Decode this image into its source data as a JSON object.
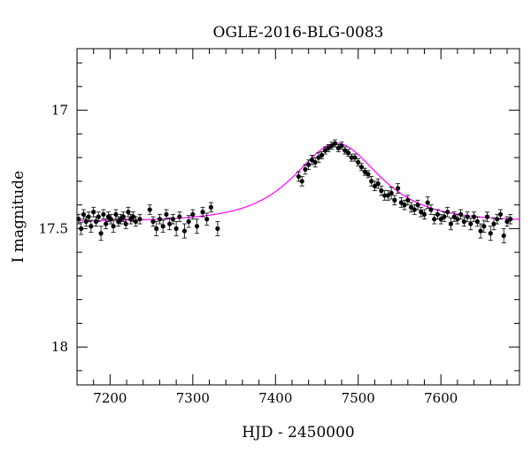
{
  "chart_data": {
    "type": "scatter",
    "title": "OGLE-2016-BLG-0083",
    "xlabel": "HJD - 2450000",
    "ylabel": "I magnitude",
    "xlim": [
      7160,
      7695
    ],
    "ylim": [
      18.16,
      16.74
    ],
    "y_inverted": true,
    "grid": false,
    "legend": "none",
    "x_ticks": [
      7200,
      7300,
      7400,
      7500,
      7600
    ],
    "y_ticks": [
      17,
      17.5,
      18
    ],
    "x_tick_labels": [
      "7200",
      "7300",
      "7400",
      "7500",
      "7600"
    ],
    "y_tick_labels": [
      "17",
      "17.5",
      "18"
    ],
    "model": {
      "color": "#ff00ff",
      "baseline": 17.47,
      "peak_mag": 17.14,
      "t0": 7474,
      "tE": 62,
      "x_range": [
        7160,
        7695
      ]
    },
    "series": [
      {
        "color": "#000000",
        "x": [
          7162,
          7165,
          7168,
          7171,
          7174,
          7177,
          7180,
          7183,
          7186,
          7189,
          7192,
          7195,
          7198,
          7201,
          7204,
          7207,
          7210,
          7213,
          7216,
          7219,
          7222,
          7225,
          7228,
          7231,
          7236,
          7248,
          7252,
          7256,
          7260,
          7264,
          7268,
          7272,
          7276,
          7280,
          7284,
          7290,
          7295,
          7300,
          7305,
          7312,
          7317,
          7322,
          7330,
          7428,
          7432,
          7436,
          7440,
          7444,
          7448,
          7452,
          7456,
          7460,
          7464,
          7468,
          7472,
          7476,
          7480,
          7484,
          7488,
          7492,
          7496,
          7500,
          7504,
          7508,
          7512,
          7516,
          7520,
          7524,
          7528,
          7532,
          7536,
          7540,
          7544,
          7548,
          7552,
          7556,
          7560,
          7564,
          7568,
          7572,
          7576,
          7580,
          7584,
          7588,
          7592,
          7596,
          7600,
          7604,
          7608,
          7612,
          7616,
          7620,
          7624,
          7628,
          7632,
          7636,
          7640,
          7644,
          7648,
          7652,
          7656,
          7660,
          7664,
          7668,
          7672,
          7676,
          7680,
          7684
        ],
        "y": [
          17.46,
          17.5,
          17.44,
          17.47,
          17.45,
          17.49,
          17.43,
          17.47,
          17.45,
          17.52,
          17.44,
          17.48,
          17.45,
          17.46,
          17.49,
          17.44,
          17.47,
          17.46,
          17.45,
          17.48,
          17.43,
          17.46,
          17.45,
          17.47,
          17.46,
          17.42,
          17.47,
          17.5,
          17.46,
          17.49,
          17.44,
          17.48,
          17.46,
          17.5,
          17.45,
          17.51,
          17.47,
          17.44,
          17.49,
          17.43,
          17.46,
          17.41,
          17.5,
          17.28,
          17.3,
          17.25,
          17.23,
          17.21,
          17.22,
          17.2,
          17.19,
          17.17,
          17.16,
          17.15,
          17.14,
          17.16,
          17.15,
          17.17,
          17.18,
          17.2,
          17.2,
          17.22,
          17.24,
          17.26,
          17.27,
          17.3,
          17.32,
          17.31,
          17.34,
          17.36,
          17.36,
          17.35,
          17.38,
          17.33,
          17.39,
          17.4,
          17.38,
          17.41,
          17.42,
          17.4,
          17.43,
          17.44,
          17.39,
          17.42,
          17.46,
          17.44,
          17.46,
          17.45,
          17.43,
          17.48,
          17.45,
          17.46,
          17.44,
          17.47,
          17.45,
          17.48,
          17.45,
          17.47,
          17.51,
          17.49,
          17.45,
          17.52,
          17.48,
          17.46,
          17.44,
          17.53,
          17.47,
          17.46
        ],
        "errors": [
          0.02,
          0.025,
          0.02,
          0.02,
          0.02,
          0.025,
          0.02,
          0.02,
          0.02,
          0.03,
          0.02,
          0.02,
          0.02,
          0.02,
          0.025,
          0.02,
          0.02,
          0.02,
          0.02,
          0.02,
          0.02,
          0.02,
          0.02,
          0.02,
          0.02,
          0.02,
          0.02,
          0.03,
          0.02,
          0.025,
          0.02,
          0.025,
          0.02,
          0.03,
          0.02,
          0.03,
          0.025,
          0.02,
          0.03,
          0.02,
          0.025,
          0.02,
          0.03,
          0.02,
          0.02,
          0.02,
          0.02,
          0.02,
          0.02,
          0.02,
          0.015,
          0.015,
          0.015,
          0.015,
          0.015,
          0.015,
          0.015,
          0.015,
          0.015,
          0.015,
          0.015,
          0.015,
          0.015,
          0.015,
          0.015,
          0.02,
          0.02,
          0.02,
          0.02,
          0.02,
          0.02,
          0.025,
          0.02,
          0.02,
          0.02,
          0.02,
          0.02,
          0.02,
          0.02,
          0.02,
          0.02,
          0.02,
          0.025,
          0.02,
          0.02,
          0.02,
          0.02,
          0.02,
          0.02,
          0.025,
          0.02,
          0.02,
          0.02,
          0.02,
          0.02,
          0.025,
          0.02,
          0.02,
          0.03,
          0.025,
          0.02,
          0.03,
          0.025,
          0.02,
          0.02,
          0.03,
          0.02,
          0.02
        ]
      }
    ]
  }
}
